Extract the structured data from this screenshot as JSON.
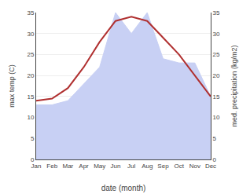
{
  "chart_data": {
    "type": "line",
    "xlabel": "date (month)",
    "ylabel": "max temp (C)",
    "y2label": "med. precipitation (kg/m2)",
    "categories": [
      "Jan",
      "Feb",
      "Mar",
      "Apr",
      "May",
      "Jun",
      "Jul",
      "Aug",
      "Sep",
      "Oct",
      "Nov",
      "Dec"
    ],
    "series": [
      {
        "type": "area",
        "axis": "y2",
        "color": "#c8d0f4",
        "values": [
          13,
          13,
          14,
          18,
          22,
          35,
          30,
          35,
          24,
          23,
          23,
          15
        ]
      },
      {
        "type": "line",
        "axis": "y",
        "color": "#b03030",
        "values": [
          14,
          14.5,
          17,
          22,
          28,
          33,
          34,
          33,
          29,
          25,
          20,
          15
        ]
      }
    ],
    "ylim": [
      0,
      35
    ],
    "yticks": [
      0,
      5,
      10,
      15,
      20,
      25,
      30,
      35
    ],
    "y2lim": [
      0,
      35
    ],
    "y2ticks": [
      0,
      5,
      10,
      15,
      20,
      25,
      30,
      35
    ],
    "grid": true
  }
}
